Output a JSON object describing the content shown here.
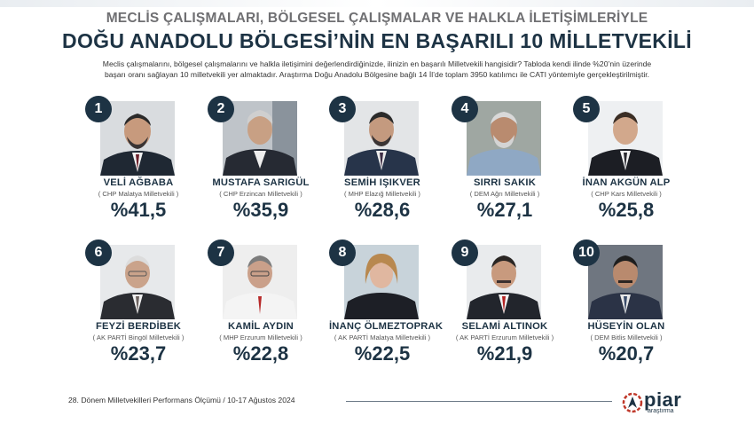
{
  "header": {
    "supertitle": "MECLİS ÇALIŞMALARI, BÖLGESEL ÇALIŞMALAR VE HALKLA İLETİŞİMLERİYLE",
    "title": "DOĞU ANADOLU BÖLGESİ’NİN EN BAŞARILI 10 MİLLETVEKİLİ",
    "description_line1": "Meclis çalışmalarını, bölgesel çalışmalarını  ve halkla iletişimini değerlendirdiğinizde, ilinizin en başarılı Milletvekili hangisidir? Tabloda kendi ilinde %20’nin üzerinde",
    "description_line2": "başarı oranı sağlayan 10 milletvekili yer almaktadır. Araştırma Doğu Anadolu Bölgesine bağlı 14 İl’de toplam 3950 katılımcı ile CATI yöntemiyle gerçekleştirilmiştir."
  },
  "mps": [
    {
      "rank": "1",
      "name": "VELİ AĞBABA",
      "party": "( CHP Malatya Milletvekili )",
      "percent": "%41,5",
      "share": 41.5
    },
    {
      "rank": "2",
      "name": "MUSTAFA SARIGÜL",
      "party": "( CHP Erzincan Milletvekili )",
      "percent": "%35,9",
      "share": 35.9
    },
    {
      "rank": "3",
      "name": "SEMİH IŞIKVER",
      "party": "( MHP Elazığ Milletvekili )",
      "percent": "%28,6",
      "share": 28.6
    },
    {
      "rank": "4",
      "name": "SIRRI SAKIK",
      "party": "( DEM Ağrı Milletvekili )",
      "percent": "%27,1",
      "share": 27.1
    },
    {
      "rank": "5",
      "name": "İNAN AKGÜN ALP",
      "party": "( CHP Kars Milletvekili )",
      "percent": "%25,8",
      "share": 25.8
    },
    {
      "rank": "6",
      "name": "FEYZİ BERDİBEK",
      "party": "( AK PARTİ Bingöl Milletvekili )",
      "percent": "%23,7",
      "share": 23.7
    },
    {
      "rank": "7",
      "name": "KAMİL AYDIN",
      "party": "( MHP Erzurum Milletvekili )",
      "percent": "%22,8",
      "share": 22.8
    },
    {
      "rank": "8",
      "name": "İNANÇ ÖLMEZTOPRAK",
      "party": "( AK PARTİ Malatya Milletvekili )",
      "percent": "%22,5",
      "share": 22.5
    },
    {
      "rank": "9",
      "name": "SELAMİ ALTINOK",
      "party": "( AK PARTİ Erzurum Milletvekili )",
      "percent": "%21,9",
      "share": 21.9
    },
    {
      "rank": "10",
      "name": "HÜSEYİN OLAN",
      "party": "( DEM Bitlis Milletvekili )",
      "percent": "%20,7",
      "share": 20.7
    }
  ],
  "footer": {
    "survey": "28. Dönem Milletvekilleri Performans Ölçümü / 10-17 Ağustos 2024",
    "logo_word": "piar",
    "logo_sub": "araştırma"
  },
  "colors": {
    "navy": "#1d3344",
    "gray_title": "#6f6f72"
  }
}
